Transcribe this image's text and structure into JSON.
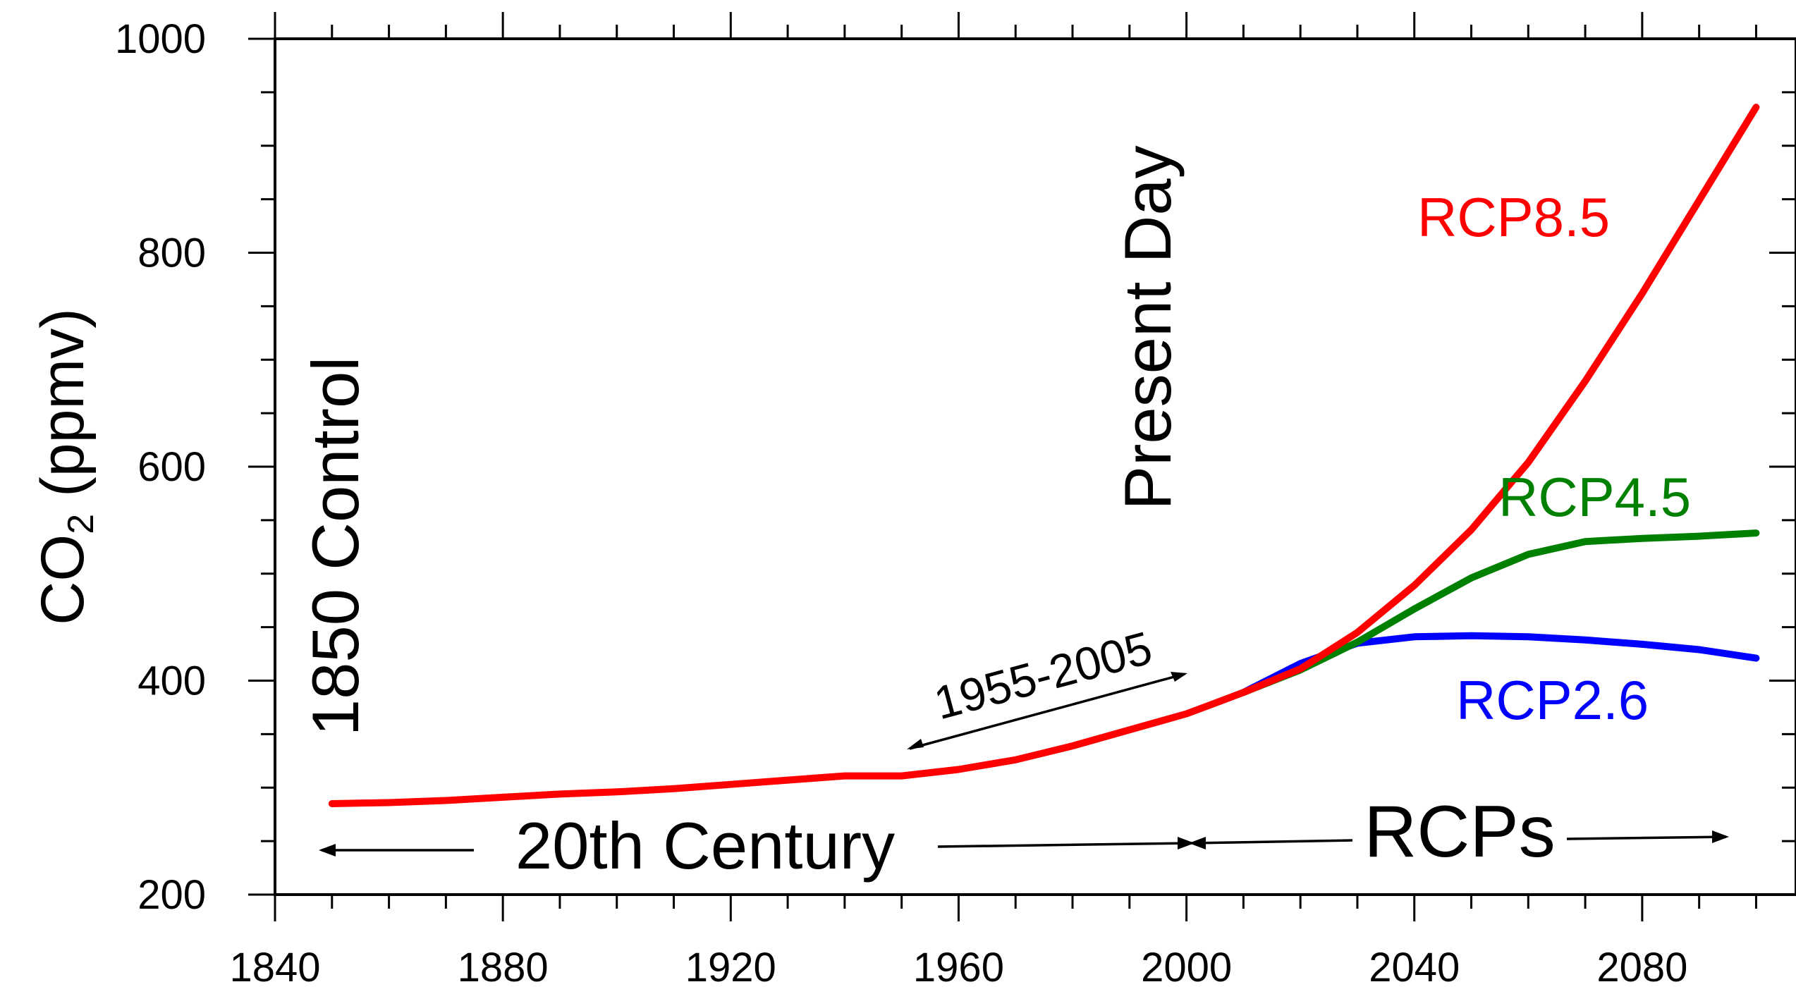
{
  "chart_data": {
    "type": "line",
    "title": "",
    "xlabel": "",
    "ylabel": {
      "prefix": "CO",
      "subscript": "2",
      "suffix": " (ppmv)"
    },
    "xlim": [
      1840,
      2107
    ],
    "ylim": [
      200,
      1000
    ],
    "x_ticks": [
      1840,
      1880,
      1920,
      1960,
      2000,
      2040,
      2080
    ],
    "x_minor_step": 10,
    "y_ticks": [
      200,
      400,
      600,
      800,
      1000
    ],
    "y_minor_step": 50,
    "grid": false,
    "colors": {
      "rcp85": "#ff0000",
      "rcp45": "#008000",
      "rcp26": "#0000ff"
    },
    "series": [
      {
        "name": "RCP8.5",
        "color": "#ff0000",
        "points": [
          [
            1850,
            285
          ],
          [
            1860,
            286
          ],
          [
            1870,
            288
          ],
          [
            1880,
            291
          ],
          [
            1890,
            294
          ],
          [
            1900,
            296
          ],
          [
            1910,
            299
          ],
          [
            1920,
            303
          ],
          [
            1930,
            307
          ],
          [
            1940,
            311
          ],
          [
            1950,
            311
          ],
          [
            1960,
            317
          ],
          [
            1970,
            326
          ],
          [
            1980,
            339
          ],
          [
            1990,
            354
          ],
          [
            2000,
            369
          ],
          [
            2005,
            379
          ],
          [
            2010,
            389
          ],
          [
            2020,
            411
          ],
          [
            2030,
            445
          ],
          [
            2040,
            489
          ],
          [
            2050,
            541
          ],
          [
            2060,
            604
          ],
          [
            2070,
            680
          ],
          [
            2080,
            762
          ],
          [
            2090,
            849
          ],
          [
            2100,
            936
          ]
        ]
      },
      {
        "name": "RCP4.5",
        "color": "#008000",
        "points": [
          [
            2010,
            389
          ],
          [
            2020,
            410
          ],
          [
            2030,
            436
          ],
          [
            2040,
            467
          ],
          [
            2050,
            496
          ],
          [
            2060,
            518
          ],
          [
            2070,
            530
          ],
          [
            2080,
            533
          ],
          [
            2090,
            535
          ],
          [
            2100,
            538
          ]
        ]
      },
      {
        "name": "RCP2.6",
        "color": "#0000ff",
        "points": [
          [
            2010,
            389
          ],
          [
            2020,
            416
          ],
          [
            2030,
            435
          ],
          [
            2040,
            441
          ],
          [
            2050,
            442
          ],
          [
            2060,
            441
          ],
          [
            2070,
            438
          ],
          [
            2080,
            434
          ],
          [
            2090,
            429
          ],
          [
            2100,
            421
          ]
        ]
      }
    ],
    "annotations": {
      "control": "1850 Control",
      "present_day": "Present Day",
      "period": "1955-2005",
      "century": "20th Century",
      "rcps": "RCPs"
    }
  }
}
